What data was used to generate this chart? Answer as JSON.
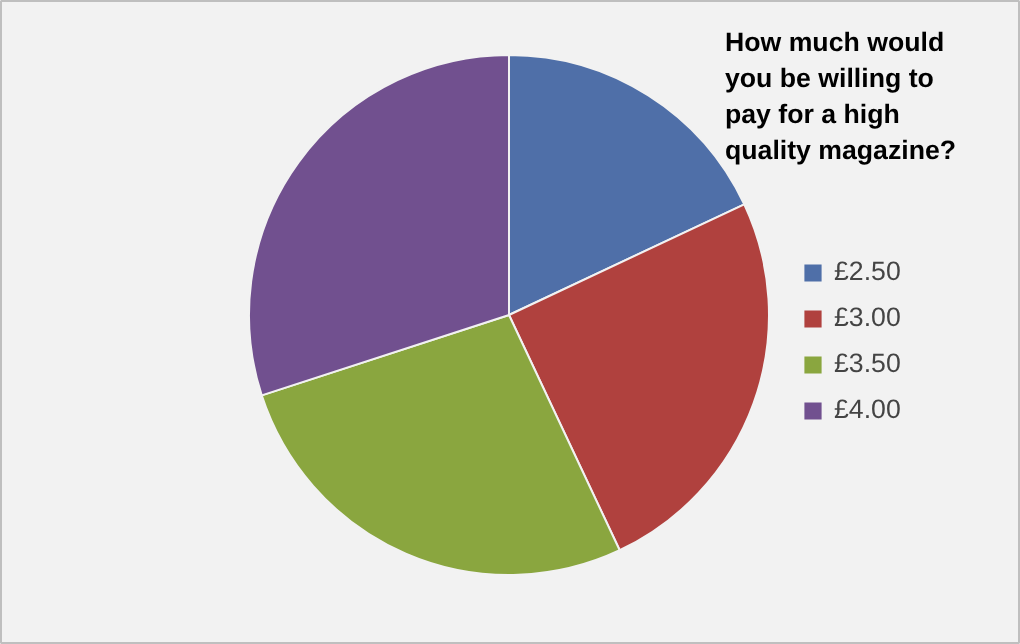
{
  "chart_data": {
    "type": "pie",
    "title": "How much would you be willing to pay for a high quality magazine?",
    "categories": [
      "£2.50",
      "£3.00",
      "£3.50",
      "£4.00"
    ],
    "values": [
      18,
      25,
      27,
      30
    ],
    "colors": [
      "#4f6fa8",
      "#b0413e",
      "#8aa63f",
      "#71508f"
    ],
    "legend": "right"
  }
}
